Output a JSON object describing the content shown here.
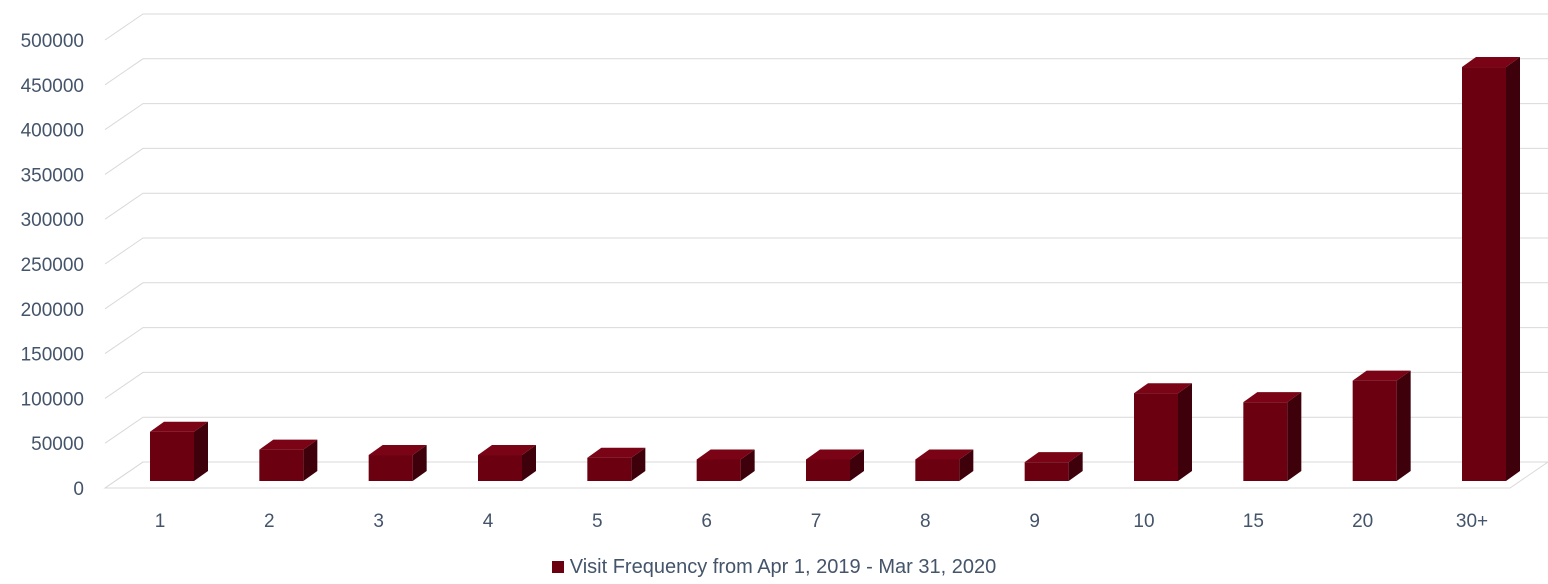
{
  "chart_data": {
    "type": "bar",
    "categories": [
      "1",
      "2",
      "3",
      "4",
      "5",
      "6",
      "7",
      "8",
      "9",
      "10",
      "15",
      "20",
      "30+"
    ],
    "series": [
      {
        "name": "Visit Frequency from Apr 1, 2019 - Mar 31, 2020",
        "values": [
          55000,
          35000,
          29000,
          29000,
          26000,
          24000,
          24000,
          24000,
          21000,
          98000,
          88000,
          112000,
          462000
        ]
      }
    ],
    "title": "",
    "xlabel": "",
    "ylabel": "",
    "ylim": [
      0,
      500000
    ],
    "yticks": [
      0,
      50000,
      100000,
      150000,
      200000,
      250000,
      300000,
      350000,
      400000,
      450000,
      500000
    ],
    "grid": true,
    "legend_position": "bottom",
    "style": "3d-column",
    "colors": {
      "bar_front": "#6b0010",
      "bar_top": "#7a0416",
      "bar_side": "#3e000a",
      "tick_text": "#44546a",
      "grid": "#d9d9d9"
    }
  }
}
